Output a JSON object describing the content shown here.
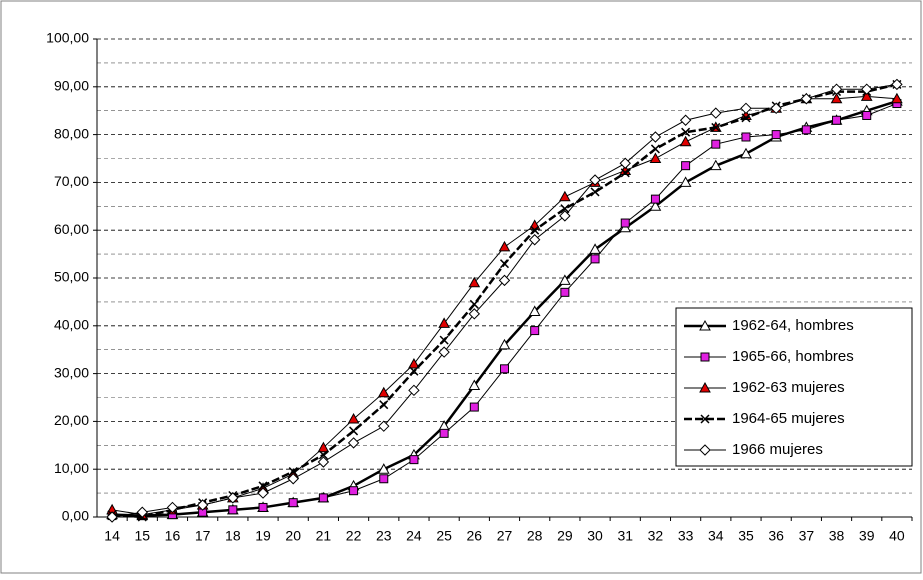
{
  "chart_data": {
    "type": "line",
    "categories": [
      "14",
      "15",
      "16",
      "17",
      "18",
      "19",
      "20",
      "21",
      "22",
      "23",
      "24",
      "25",
      "26",
      "27",
      "28",
      "29",
      "30",
      "31",
      "32",
      "33",
      "34",
      "35",
      "36",
      "37",
      "38",
      "39",
      "40"
    ],
    "series": [
      {
        "name": "1962-64, hombres",
        "color": "#ffffff",
        "line_color": "#000000",
        "line_width": 2.5,
        "dash": "solid",
        "marker": "triangle",
        "values": [
          0.5,
          0.3,
          0.5,
          1,
          1.5,
          2,
          3,
          4,
          6.5,
          10,
          13,
          19,
          27.5,
          36,
          43,
          49.5,
          56,
          60.5,
          65,
          70,
          73.5,
          76,
          79.5,
          81.5,
          83,
          85,
          87
        ]
      },
      {
        "name": "1965-66, hombres",
        "color": "#e020e0",
        "line_color": "#000000",
        "line_width": 1,
        "dash": "solid",
        "marker": "square",
        "values": [
          0.3,
          0.3,
          0.5,
          1,
          1.5,
          2,
          3,
          4,
          5.5,
          8,
          12,
          17.5,
          23,
          31,
          39,
          47,
          54,
          61.5,
          66.5,
          73.5,
          78,
          79.5,
          80,
          81,
          83,
          84,
          86.5
        ]
      },
      {
        "name": "1962-63 mujeres",
        "color": "#e00000",
        "line_color": "#000000",
        "line_width": 1,
        "dash": "solid",
        "marker": "triangle",
        "values": [
          1.5,
          0.5,
          1.5,
          2.5,
          4,
          6,
          9,
          14.5,
          20.5,
          26,
          32,
          40.5,
          49,
          56.5,
          61,
          67,
          70,
          72.5,
          75,
          78.5,
          81.5,
          84,
          85.5,
          87.5,
          87.5,
          88,
          87.5
        ]
      },
      {
        "name": "1964-65 mujeres",
        "color": "#000000",
        "line_color": "#000000",
        "line_width": 2.5,
        "dash": "dashed",
        "marker": "x",
        "values": [
          0.5,
          0,
          1.5,
          3,
          4.5,
          6.5,
          9.5,
          13,
          18,
          23.5,
          30.5,
          37,
          44.5,
          53,
          60,
          64.5,
          68,
          72,
          77,
          80.5,
          81.5,
          83.5,
          86,
          87.5,
          89,
          89,
          90.5
        ]
      },
      {
        "name": "1966 mujeres",
        "color": "#ffffff",
        "line_color": "#000000",
        "line_width": 1,
        "dash": "solid",
        "marker": "diamond",
        "values": [
          0,
          1,
          2,
          2.5,
          4,
          5,
          8,
          11.5,
          15.5,
          19,
          26.5,
          34.5,
          42.5,
          49.5,
          58,
          63,
          70.5,
          74,
          79.5,
          83,
          84.5,
          85.5,
          85.5,
          87.5,
          89.5,
          89.5,
          90.5
        ]
      }
    ],
    "ylim": [
      0,
      100
    ],
    "yticks": [
      {
        "value": 0,
        "label": "0,00"
      },
      {
        "value": 10,
        "label": "10,00"
      },
      {
        "value": 20,
        "label": "20,00"
      },
      {
        "value": 30,
        "label": "30,00"
      },
      {
        "value": 40,
        "label": "40,00"
      },
      {
        "value": 50,
        "label": "50,00"
      },
      {
        "value": 60,
        "label": "60,00"
      },
      {
        "value": 70,
        "label": "70,00"
      },
      {
        "value": 80,
        "label": "80,00"
      },
      {
        "value": 90,
        "label": "90,00"
      },
      {
        "value": 100,
        "label": "100,00"
      }
    ],
    "grid": true,
    "legend": "right"
  }
}
